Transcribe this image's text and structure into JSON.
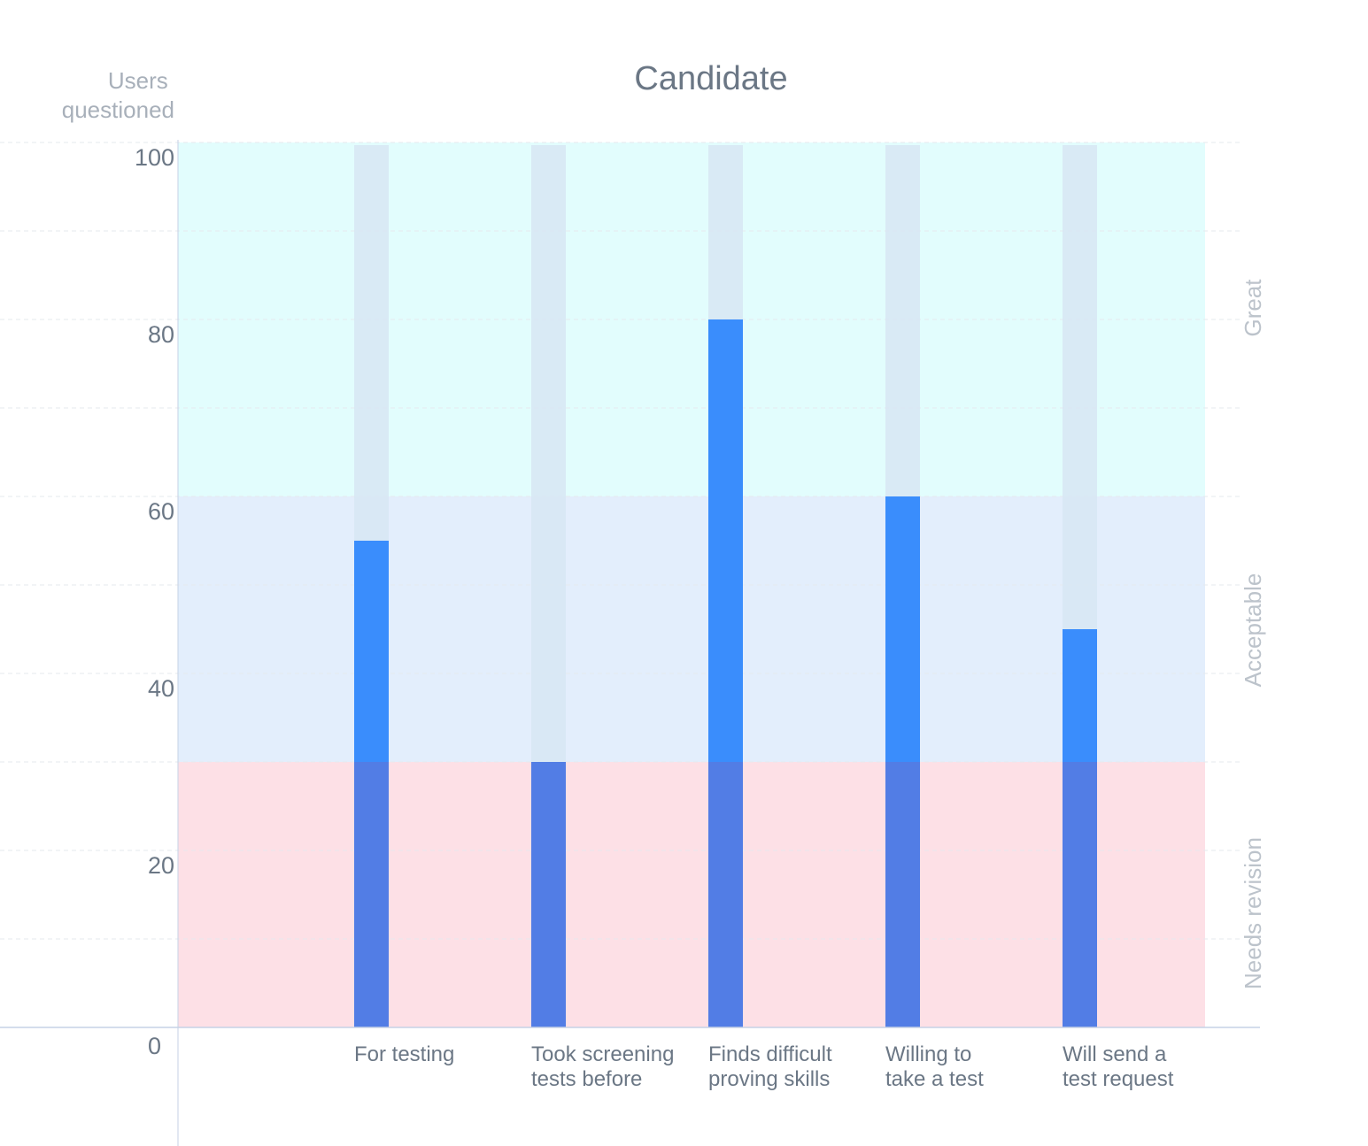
{
  "chart_data": {
    "type": "bar",
    "title": "Candidate",
    "ylabel": [
      "Users",
      "questioned"
    ],
    "ylim": [
      0,
      100
    ],
    "yticks": [
      "0",
      "20",
      "40",
      "60",
      "80",
      "100"
    ],
    "grid": true,
    "categories": [
      [
        "For testing"
      ],
      [
        "Took screening",
        "tests before"
      ],
      [
        "Finds difficult",
        "proving skills"
      ],
      [
        "Willing to",
        "take a test"
      ],
      [
        "Will send a",
        "test request"
      ]
    ],
    "values": [
      55,
      30,
      80,
      60,
      45
    ],
    "max_value": 100,
    "bands": [
      {
        "label": "Needs revision",
        "from": 0,
        "to": 30,
        "color": "#fde0e6"
      },
      {
        "label": "Acceptable",
        "from": 30,
        "to": 60,
        "color": "#e3eefc"
      },
      {
        "label": "Great",
        "from": 60,
        "to": 100,
        "color": "#e2fdfd"
      }
    ],
    "colors": {
      "bar": "#3a8dfc",
      "bar_low": "#527de5",
      "track": "#d7e6f3",
      "grid": "#e6e9ee",
      "axis": "#c6d2e6"
    }
  }
}
